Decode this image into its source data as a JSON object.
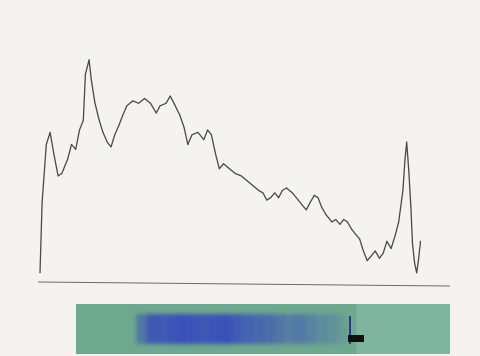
{
  "chart_data": {
    "type": "line",
    "title": "",
    "xlabel": "",
    "ylabel": "",
    "grid": false,
    "legend": "none",
    "xlim": [
      0,
      100
    ],
    "ylim": [
      0,
      100
    ],
    "series": [
      {
        "points": [
          [
            0,
            3
          ],
          [
            0.5,
            32
          ],
          [
            1.5,
            56
          ],
          [
            2.4,
            61
          ],
          [
            3.3,
            52
          ],
          [
            4.3,
            43
          ],
          [
            5.2,
            44
          ],
          [
            6.6,
            50
          ],
          [
            7.5,
            56
          ],
          [
            8.5,
            54
          ],
          [
            9.4,
            62
          ],
          [
            10.3,
            66
          ],
          [
            10.8,
            85
          ],
          [
            11.7,
            91
          ],
          [
            12.2,
            83
          ],
          [
            13.1,
            73
          ],
          [
            14.1,
            66
          ],
          [
            15.0,
            61
          ],
          [
            16.0,
            57
          ],
          [
            16.9,
            55
          ],
          [
            17.8,
            60
          ],
          [
            18.8,
            64
          ],
          [
            19.7,
            68
          ],
          [
            20.7,
            72
          ],
          [
            22.1,
            74
          ],
          [
            23.5,
            73
          ],
          [
            24.9,
            75
          ],
          [
            26.3,
            73
          ],
          [
            27.7,
            69
          ],
          [
            28.6,
            72
          ],
          [
            30.0,
            73
          ],
          [
            31.0,
            76
          ],
          [
            31.9,
            73
          ],
          [
            33.3,
            68
          ],
          [
            34.3,
            63
          ],
          [
            35.2,
            56
          ],
          [
            36.2,
            60
          ],
          [
            37.6,
            61
          ],
          [
            39.0,
            58
          ],
          [
            39.9,
            62
          ],
          [
            40.8,
            60
          ],
          [
            41.8,
            52
          ],
          [
            42.7,
            46
          ],
          [
            43.7,
            48
          ],
          [
            45.1,
            46
          ],
          [
            46.5,
            44
          ],
          [
            47.9,
            43
          ],
          [
            49.3,
            41
          ],
          [
            50.7,
            39
          ],
          [
            52.1,
            37
          ],
          [
            53.1,
            36
          ],
          [
            54.0,
            33
          ],
          [
            54.9,
            34
          ],
          [
            55.9,
            36
          ],
          [
            56.8,
            34
          ],
          [
            57.7,
            37
          ],
          [
            58.7,
            38
          ],
          [
            60.1,
            36
          ],
          [
            61.5,
            33
          ],
          [
            62.4,
            31
          ],
          [
            63.4,
            29
          ],
          [
            64.3,
            32
          ],
          [
            65.3,
            35
          ],
          [
            66.2,
            34
          ],
          [
            67.1,
            30
          ],
          [
            68.1,
            27
          ],
          [
            69.5,
            24
          ],
          [
            70.4,
            25
          ],
          [
            71.4,
            23
          ],
          [
            72.3,
            25
          ],
          [
            73.2,
            24
          ],
          [
            74.2,
            21
          ],
          [
            75.1,
            19
          ],
          [
            76.1,
            17
          ],
          [
            77.0,
            12
          ],
          [
            77.9,
            8
          ],
          [
            78.9,
            10
          ],
          [
            79.8,
            12
          ],
          [
            80.8,
            9
          ],
          [
            81.7,
            11
          ],
          [
            82.6,
            16
          ],
          [
            83.6,
            13
          ],
          [
            84.5,
            18
          ],
          [
            85.4,
            24
          ],
          [
            86.4,
            37
          ],
          [
            86.9,
            50
          ],
          [
            87.3,
            57
          ],
          [
            87.8,
            45
          ],
          [
            88.3,
            30
          ],
          [
            88.7,
            15
          ],
          [
            89.2,
            7
          ],
          [
            89.7,
            3
          ],
          [
            90.1,
            8
          ],
          [
            90.6,
            16
          ]
        ]
      }
    ],
    "colors": {
      "line": "#4a4a4a",
      "background": "#f4f3f1",
      "strip_background": "#6ea88f",
      "band_color": "#3a4fb8",
      "marker": "#111111"
    },
    "gel_strip": {
      "band_intensity": [
        0.55,
        0.9,
        0.85,
        0.95,
        1.0,
        0.95,
        0.9,
        0.95,
        1.0,
        0.85,
        0.75,
        0.7,
        0.65,
        0.55,
        0.45,
        0.5,
        0.4,
        0.3,
        0.25,
        0.15
      ]
    }
  }
}
